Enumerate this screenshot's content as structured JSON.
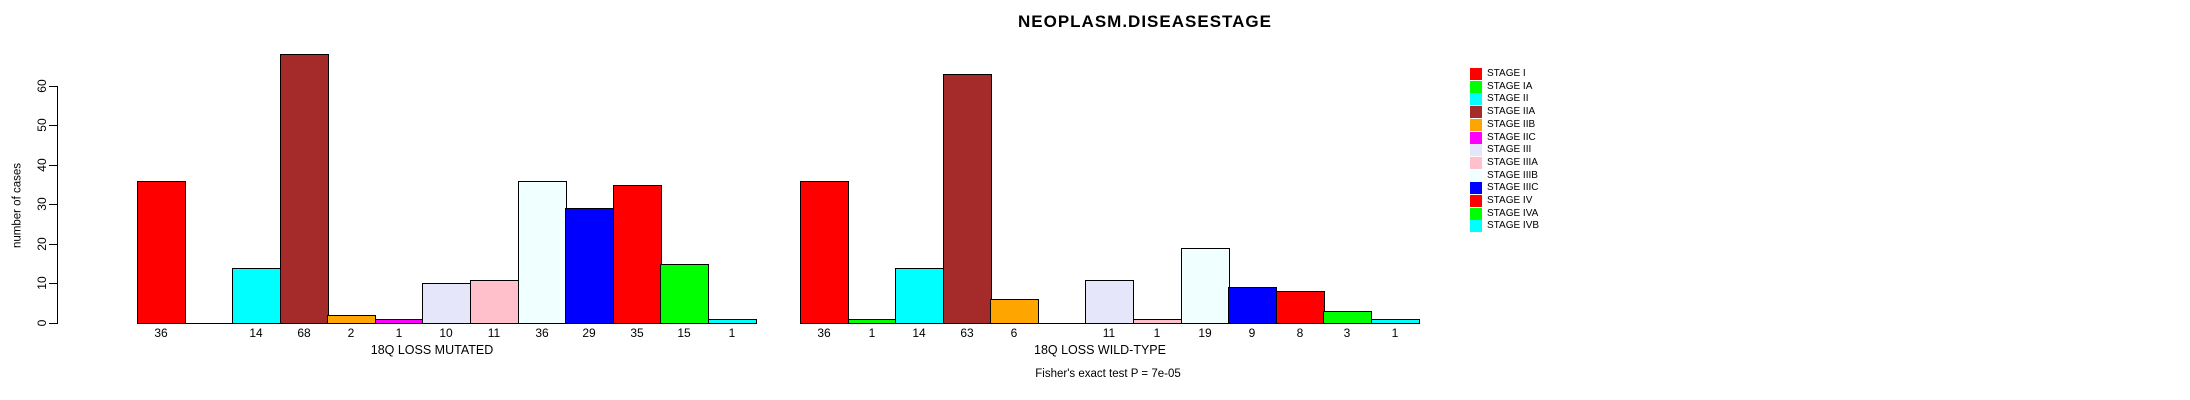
{
  "title": "NEOPLASM.DISEASESTAGE",
  "footer": {
    "fisher_text": "Fisher's exact test P = 7e-05"
  },
  "chart_data": {
    "type": "bar",
    "title": "NEOPLASM.DISEASESTAGE",
    "xlabel": "",
    "ylabel": "number of cases",
    "yticks": [
      0,
      10,
      20,
      30,
      40,
      50,
      60
    ],
    "ylim": [
      0,
      68
    ],
    "grid": false,
    "legend_position": "right",
    "bar_border_color": "#000000",
    "categories": [
      "STAGE I",
      "STAGE IA",
      "STAGE II",
      "STAGE IIA",
      "STAGE IIB",
      "STAGE IIC",
      "STAGE III",
      "STAGE IIIA",
      "STAGE IIIB",
      "STAGE IIIC",
      "STAGE IV",
      "STAGE IVA",
      "STAGE IVB"
    ],
    "palette": [
      "#FF0000",
      "#00FF00",
      "#00FFFF",
      "#A52A2A",
      "#FFA500",
      "#FF00FF",
      "#E6E6FA",
      "#FFC0CB",
      "#F0FFFF",
      "#0000FF",
      "#FF0000",
      "#00FF00",
      "#00FFFF"
    ],
    "series": [
      {
        "name": "18Q LOSS MUTATED",
        "values": [
          36,
          0,
          14,
          68,
          2,
          1,
          10,
          11,
          36,
          29,
          35,
          15,
          1
        ]
      },
      {
        "name": "18Q LOSS WILD-TYPE",
        "values": [
          36,
          1,
          14,
          63,
          6,
          0,
          11,
          1,
          19,
          9,
          8,
          3,
          1
        ]
      }
    ],
    "annotation": "Fisher's exact test P = 7e-05"
  }
}
